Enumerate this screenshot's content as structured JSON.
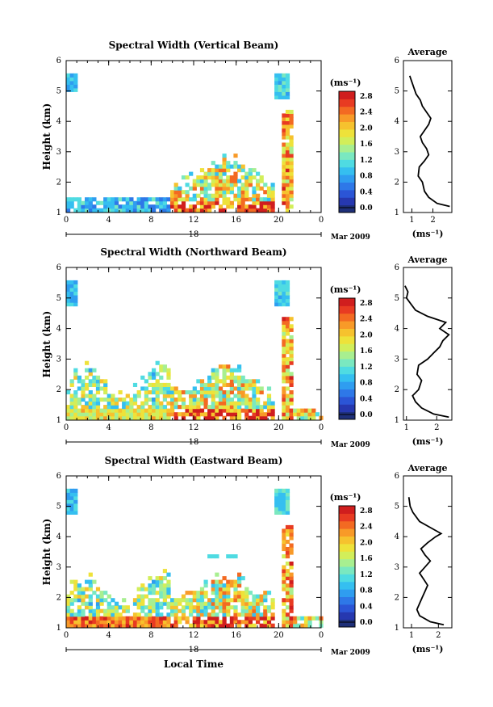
{
  "figure": {
    "xlabel": "Local Time",
    "date_line_label": "18",
    "date_text": "Mar 2009",
    "colorbar_unit": "(ms⁻¹)",
    "avg_title": "Average",
    "avg_xlabel": "(ms⁻¹)",
    "colorbar_ticks": [
      "0.0",
      "0.4",
      "0.8",
      "1.2",
      "1.6",
      "2.0",
      "2.4",
      "2.8"
    ],
    "colormap": [
      "#1e2f78",
      "#2638b0",
      "#2b55d6",
      "#2e78e8",
      "#2f9df0",
      "#35bff0",
      "#4fdbe2",
      "#7ae8c0",
      "#a8ef90",
      "#d2ee5a",
      "#eee23a",
      "#f6c22e",
      "#f89a28",
      "#f36a22",
      "#e83b22",
      "#d01e1e"
    ]
  },
  "chart_data": [
    {
      "type": "heatmap",
      "title": "Spectral Width (Vertical Beam)",
      "ylabel": "Height (km)",
      "xlim": [
        0,
        24
      ],
      "ylim": [
        1,
        6
      ],
      "x_tick_labels": [
        "0",
        "4",
        "8",
        "12",
        "16",
        "20",
        "0"
      ],
      "y_tick_labels": [
        "1",
        "2",
        "3",
        "4",
        "5",
        "6"
      ],
      "zlim": [
        0,
        3.0
      ],
      "avg_profile": {
        "title": "Average",
        "xlim": [
          0.6,
          2.9
        ],
        "ylim": [
          1,
          6
        ],
        "x_tick_labels": [
          "1",
          "2"
        ],
        "x_ticks": [
          1,
          2
        ],
        "y_tick_labels": [
          "1",
          "2",
          "3",
          "4",
          "5",
          "6"
        ],
        "x": [
          2.8,
          2.2,
          1.8,
          1.6,
          1.5,
          1.3,
          1.35,
          1.6,
          1.8,
          1.7,
          1.5,
          1.4,
          1.6,
          1.8,
          1.9,
          1.7,
          1.5,
          1.4,
          1.2,
          1.1,
          1.0,
          0.9
        ],
        "y": [
          1.2,
          1.3,
          1.5,
          1.7,
          2.0,
          2.2,
          2.5,
          2.7,
          2.9,
          3.1,
          3.3,
          3.5,
          3.7,
          3.9,
          4.1,
          4.3,
          4.5,
          4.7,
          4.9,
          5.1,
          5.3,
          5.5
        ]
      }
    },
    {
      "type": "heatmap",
      "title": "Spectral Width (Northward Beam)",
      "ylabel": "Height (km)",
      "xlim": [
        0,
        24
      ],
      "ylim": [
        1,
        6
      ],
      "x_tick_labels": [
        "0",
        "4",
        "8",
        "12",
        "16",
        "20",
        "0"
      ],
      "y_tick_labels": [
        "1",
        "2",
        "3",
        "4",
        "5",
        "6"
      ],
      "zlim": [
        0,
        3.0
      ],
      "avg_profile": {
        "title": "Average",
        "xlim": [
          0.9,
          2.5
        ],
        "ylim": [
          1,
          6
        ],
        "x_tick_labels": [
          "1",
          "2"
        ],
        "x_ticks": [
          1,
          2
        ],
        "y_tick_labels": [
          "1",
          "2",
          "3",
          "4",
          "5",
          "6"
        ],
        "x": [
          2.4,
          1.9,
          1.5,
          1.3,
          1.2,
          1.4,
          1.5,
          1.35,
          1.4,
          1.7,
          1.9,
          2.1,
          2.2,
          2.4,
          2.1,
          2.3,
          1.7,
          1.3,
          1.15,
          1.0,
          1.05,
          0.95
        ],
        "y": [
          1.1,
          1.2,
          1.4,
          1.6,
          1.8,
          2.0,
          2.3,
          2.5,
          2.8,
          3.0,
          3.2,
          3.4,
          3.6,
          3.8,
          4.0,
          4.2,
          4.4,
          4.6,
          4.8,
          5.0,
          5.2,
          5.4
        ]
      }
    },
    {
      "type": "heatmap",
      "title": "Spectral Width (Eastward Beam)",
      "ylabel": "Height (km)",
      "xlim": [
        0,
        24
      ],
      "ylim": [
        1,
        6
      ],
      "x_tick_labels": [
        "0",
        "4",
        "8",
        "12",
        "16",
        "20",
        "0"
      ],
      "y_tick_labels": [
        "1",
        "2",
        "3",
        "4",
        "5",
        "6"
      ],
      "zlim": [
        0,
        3.0
      ],
      "avg_profile": {
        "title": "Average",
        "xlim": [
          0.7,
          2.5
        ],
        "ylim": [
          1,
          6
        ],
        "x_tick_labels": [
          "1",
          "2"
        ],
        "x_ticks": [
          1,
          2
        ],
        "y_tick_labels": [
          "1",
          "2",
          "3",
          "4",
          "5",
          "6"
        ],
        "x": [
          2.2,
          1.7,
          1.3,
          1.2,
          1.3,
          1.4,
          1.5,
          1.6,
          1.45,
          1.3,
          1.5,
          1.7,
          1.5,
          1.35,
          1.6,
          1.9,
          2.1,
          1.7,
          1.3,
          1.05,
          0.95,
          0.9
        ],
        "y": [
          1.1,
          1.2,
          1.4,
          1.6,
          1.8,
          2.0,
          2.2,
          2.4,
          2.6,
          2.8,
          3.0,
          3.2,
          3.4,
          3.6,
          3.8,
          4.0,
          4.1,
          4.3,
          4.5,
          4.8,
          5.0,
          5.3
        ]
      }
    }
  ]
}
